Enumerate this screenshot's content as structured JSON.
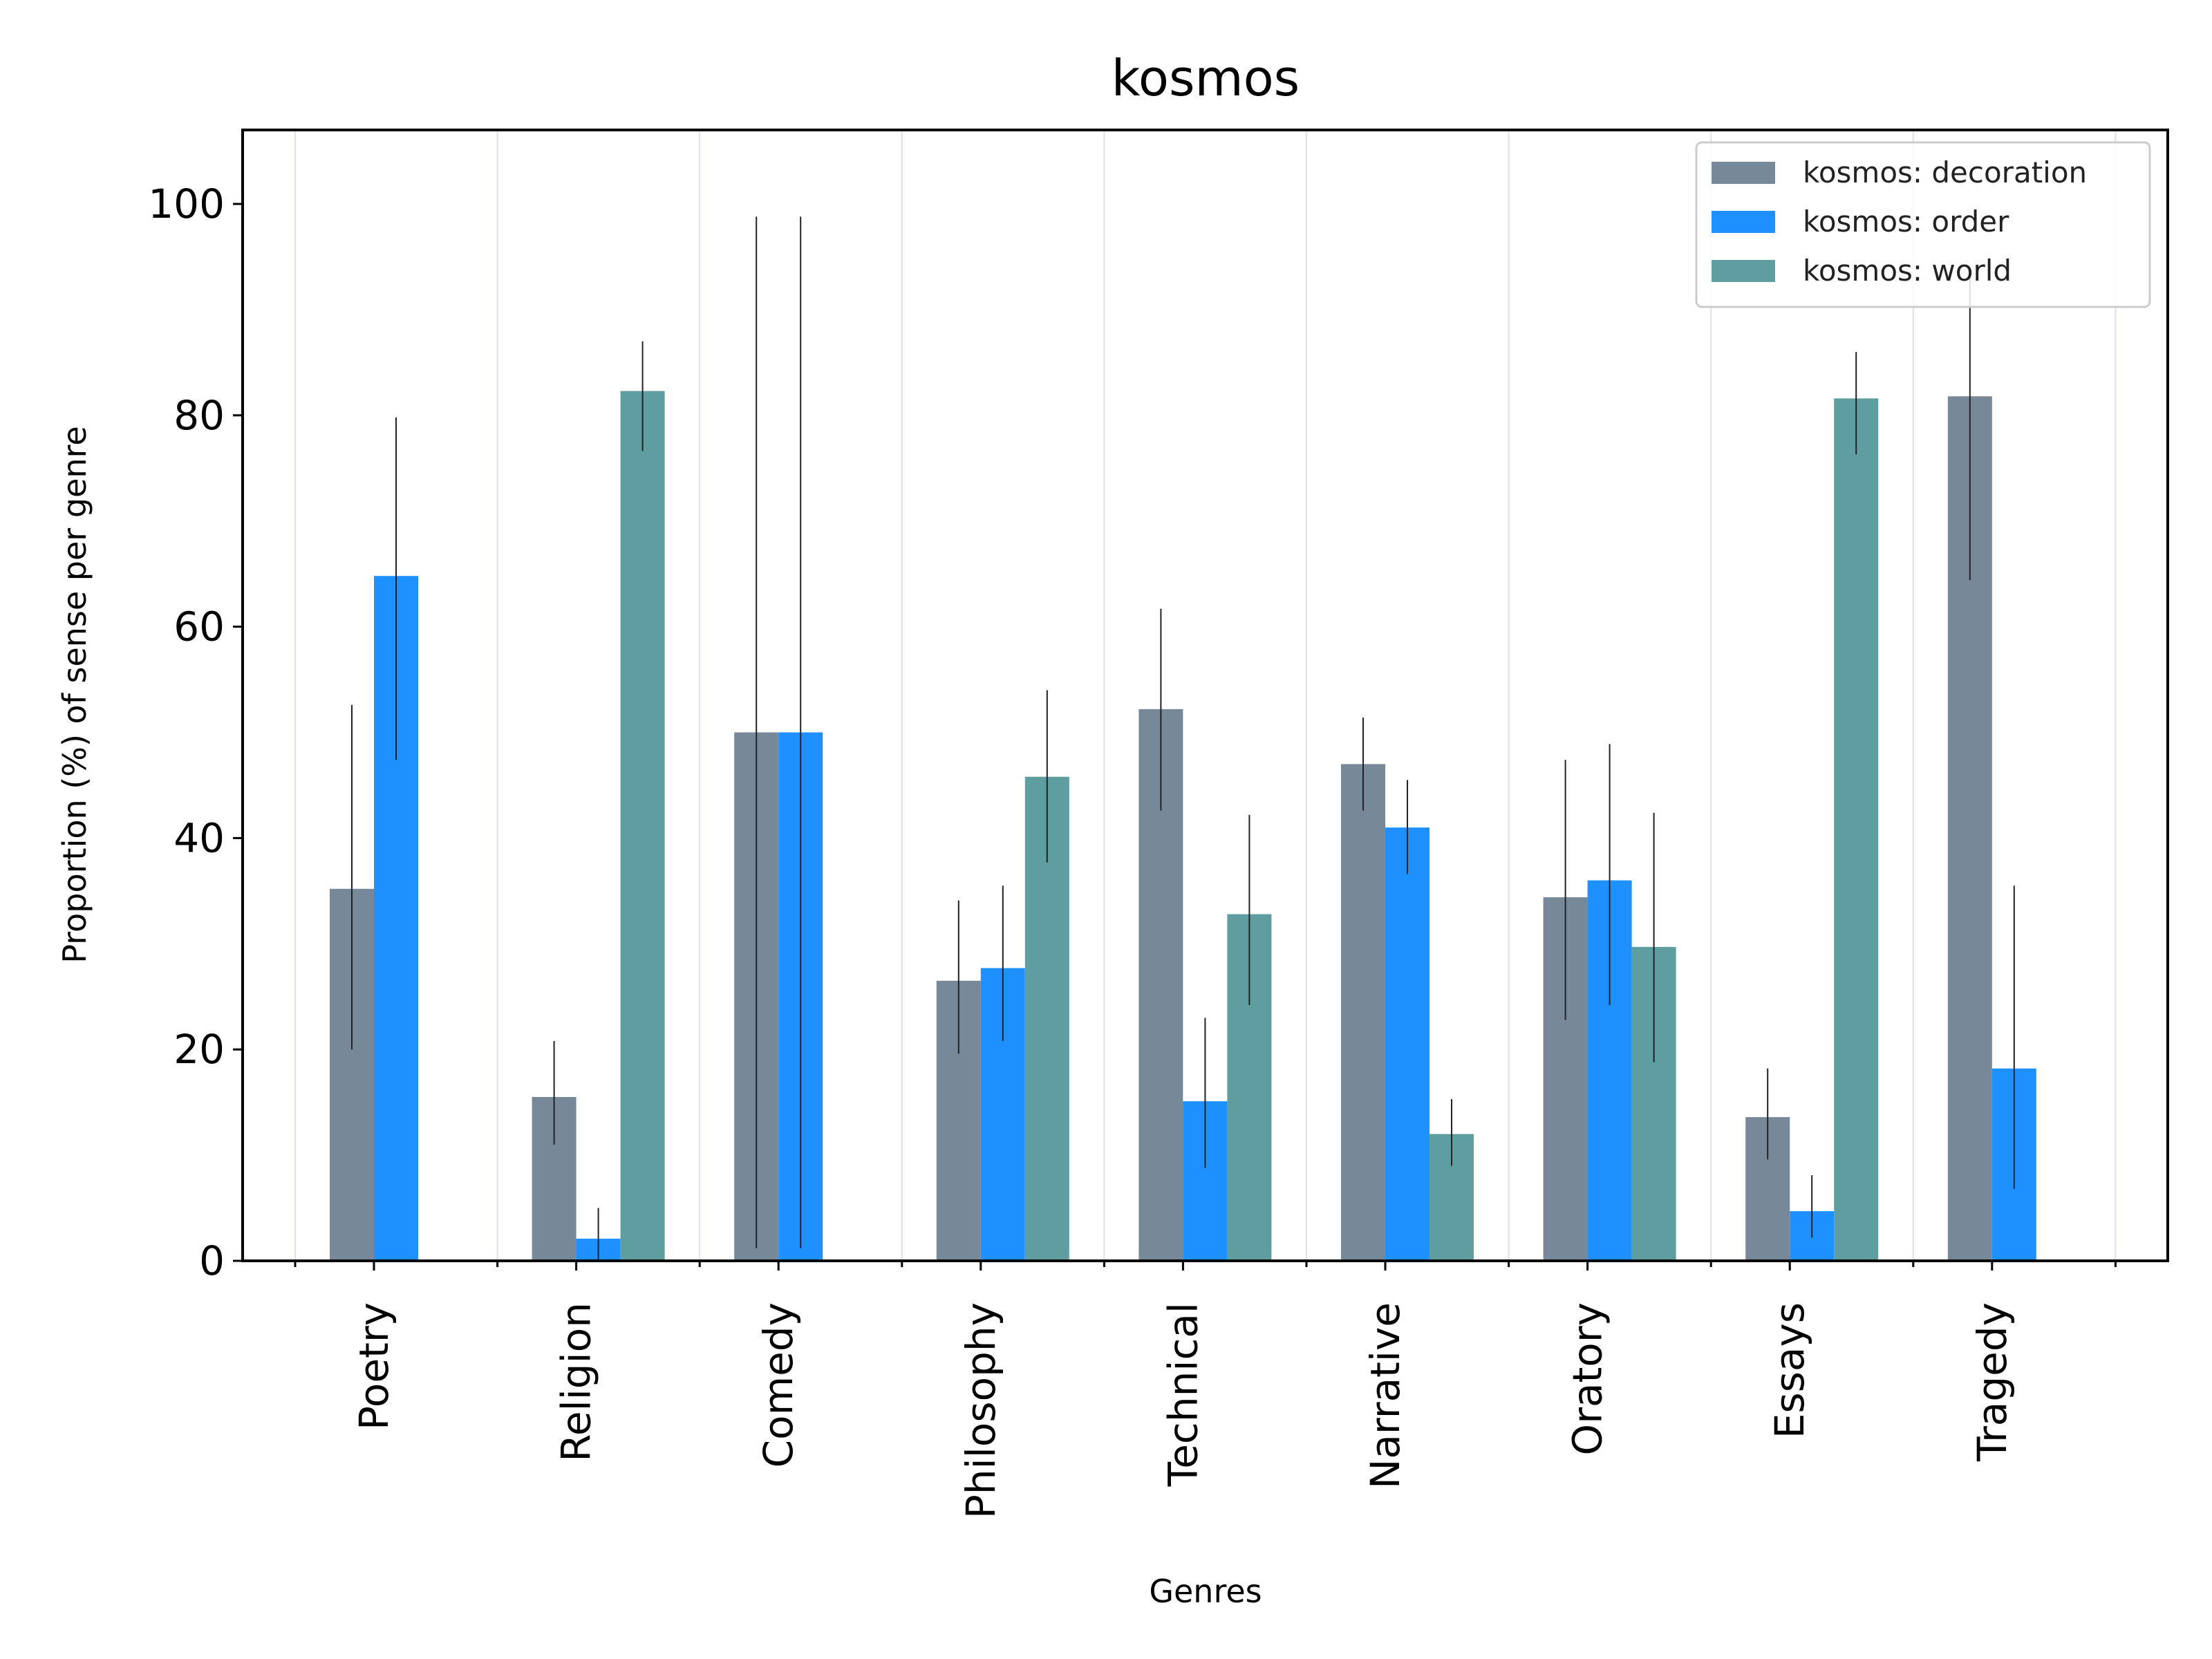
{
  "chart_data": {
    "type": "bar",
    "title": "kosmos",
    "xlabel": "Genres",
    "ylabel": "Proportion (%) of sense per genre",
    "ylim": [
      0,
      107
    ],
    "yticks": [
      0,
      20,
      40,
      60,
      80,
      100
    ],
    "grid": "vertical",
    "legend_position": "top-right",
    "categories": [
      "Poetry",
      "Religion",
      "Comedy",
      "Philosophy",
      "Technical",
      "Narrative",
      "Oratory",
      "Essays",
      "Tragedy"
    ],
    "series": [
      {
        "name": "kosmos: decoration",
        "color": "#778899",
        "values": [
          35.2,
          15.5,
          50.0,
          26.5,
          52.2,
          47.0,
          34.4,
          13.6,
          81.8
        ],
        "err_low": [
          20.0,
          11.0,
          1.2,
          19.6,
          42.6,
          42.6,
          22.8,
          9.6,
          64.4
        ],
        "err_high": [
          52.6,
          20.8,
          98.8,
          34.1,
          61.7,
          51.4,
          47.4,
          18.2,
          93.5
        ]
      },
      {
        "name": "kosmos: order",
        "color": "#1e90ff",
        "values": [
          64.8,
          2.1,
          50.0,
          27.7,
          15.1,
          41.0,
          36.0,
          4.7,
          18.2
        ],
        "err_low": [
          47.4,
          0.0,
          1.2,
          20.8,
          8.8,
          36.6,
          24.2,
          2.2,
          6.8
        ],
        "err_high": [
          79.8,
          5.0,
          98.8,
          35.5,
          23.0,
          45.5,
          48.9,
          8.1,
          35.5
        ]
      },
      {
        "name": "kosmos: world",
        "color": "#5f9ea0",
        "values": [
          null,
          82.3,
          null,
          45.8,
          32.8,
          12.0,
          29.7,
          81.6,
          null
        ],
        "err_low": [
          null,
          76.6,
          null,
          37.7,
          24.2,
          9.0,
          18.8,
          76.3,
          null
        ],
        "err_high": [
          null,
          87.0,
          null,
          54.0,
          42.2,
          15.3,
          42.4,
          86.0,
          null
        ]
      }
    ]
  }
}
